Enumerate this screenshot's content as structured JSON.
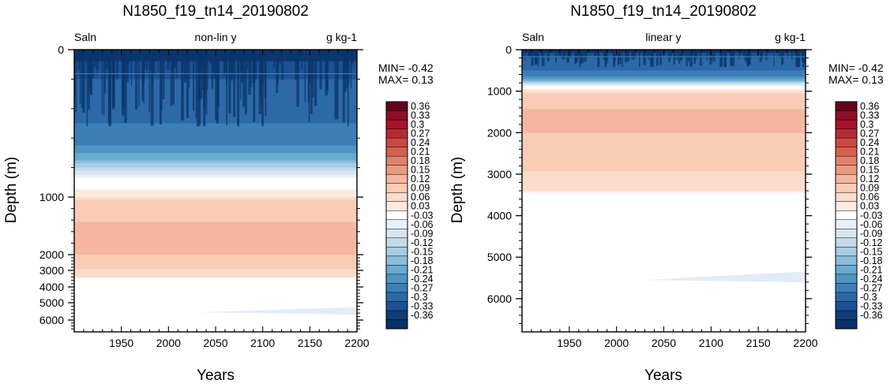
{
  "chart_data": [
    {
      "type": "heatmap",
      "title": "N1850_f19_tn14_20190802",
      "left_label": "Saln",
      "center_label": "non-lin y",
      "right_label": "g kg-1",
      "xlabel": "Years",
      "ylabel": "Depth (m)",
      "xlim": [
        1900,
        2200
      ],
      "ylim": [
        0,
        6800
      ],
      "y_scale": "non-linear",
      "x_ticks": [
        "1950",
        "2000",
        "2050",
        "2100",
        "2150",
        "2200"
      ],
      "y_ticks": [
        "0",
        "1000",
        "2000",
        "3000",
        "4000",
        "5000",
        "6000"
      ],
      "min_label": "MIN= -0.42",
      "max_label": "MAX=  0.13"
    },
    {
      "type": "heatmap",
      "title": "N1850_f19_tn14_20190802",
      "left_label": "Saln",
      "center_label": "linear y",
      "right_label": "g kg-1",
      "xlabel": "Years",
      "ylabel": "Depth (m)",
      "xlim": [
        1900,
        2200
      ],
      "ylim": [
        0,
        6800
      ],
      "y_scale": "linear",
      "x_ticks": [
        "1950",
        "2000",
        "2050",
        "2100",
        "2150",
        "2200"
      ],
      "y_ticks": [
        "0",
        "1000",
        "2000",
        "3000",
        "4000",
        "5000",
        "6000"
      ],
      "min_label": "MIN= -0.42",
      "max_label": "MAX=  0.13"
    }
  ],
  "profile": {
    "depth": [
      0,
      80,
      200,
      300,
      400,
      500,
      600,
      650,
      700,
      750,
      800,
      850,
      900,
      950,
      1050,
      1300,
      1500,
      1700,
      1900,
      2200,
      2900,
      3000,
      3400,
      3500,
      5000,
      5400,
      6800
    ],
    "value": [
      -0.36,
      -0.33,
      -0.3,
      -0.3,
      -0.3,
      -0.27,
      -0.27,
      -0.24,
      -0.21,
      -0.18,
      -0.12,
      -0.06,
      0.0,
      0.03,
      0.09,
      0.1,
      0.13,
      0.14,
      0.13,
      0.1,
      0.1,
      0.06,
      0.06,
      0.0,
      0.0,
      -0.02,
      -0.02
    ]
  },
  "colorbar": {
    "labels": [
      "0.36",
      "0.33",
      "0.3",
      "0.27",
      "0.24",
      "0.21",
      "0.18",
      "0.15",
      "0.12",
      "0.09",
      "0.06",
      "0.03",
      "-0.03",
      "-0.06",
      "-0.09",
      "-0.12",
      "-0.15",
      "-0.18",
      "-0.21",
      "-0.24",
      "-0.27",
      "-0.3",
      "-0.33",
      "-0.36"
    ],
    "colors": [
      "#67001f",
      "#8e0d26",
      "#a5142a",
      "#b52b33",
      "#c84a42",
      "#d6604d",
      "#e0826a",
      "#ea9a80",
      "#f4b6a0",
      "#f9cdb5",
      "#fbdccb",
      "#fde9df",
      "#ffffff",
      "#e8f0f8",
      "#d8e6f2",
      "#c3dbeb",
      "#a7cce4",
      "#8bbddb",
      "#6aaad1",
      "#4f95c4",
      "#3c7fb8",
      "#2c69a8",
      "#1c5294",
      "#0e3c77",
      "#08306b"
    ]
  }
}
